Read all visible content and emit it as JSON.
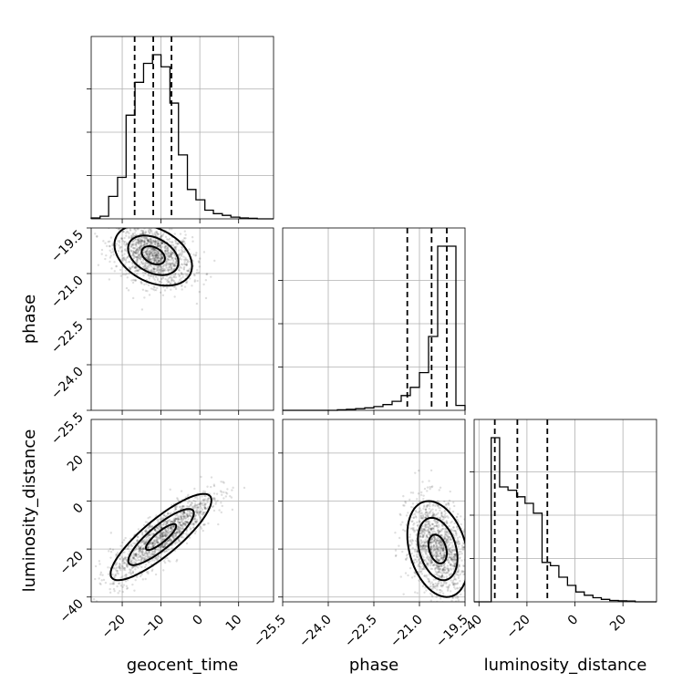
{
  "chart_data": {
    "type": "corner",
    "parameters": [
      "geocent_time",
      "phase",
      "luminosity_distance"
    ],
    "axis_labels": {
      "geocent_time": "geocent_time",
      "phase": "phase",
      "luminosity_distance": "luminosity_distance"
    },
    "ranges": {
      "geocent_time": [
        -28,
        19
      ],
      "phase": [
        -25.5,
        -19.5
      ],
      "luminosity_distance": [
        -42,
        34
      ]
    },
    "ticks": {
      "geocent_time": [
        -20,
        -10,
        0,
        10
      ],
      "phase": [
        -25.5,
        -24.0,
        -22.5,
        -21.0,
        -19.5
      ],
      "luminosity_distance": [
        -40,
        -20,
        0,
        20
      ]
    },
    "tick_labels": {
      "geocent_time": [
        "−20",
        "−10",
        "0",
        "10"
      ],
      "phase": [
        "−25.5",
        "−24.0",
        "−22.5",
        "−21.0",
        "−19.5"
      ],
      "luminosity_distance": [
        "−40",
        "−20",
        "0",
        "20"
      ]
    },
    "grid": true,
    "marginals": {
      "geocent_time": {
        "quantiles": [
          -16.8,
          -12.0,
          -7.3
        ],
        "bin_edges": [
          -28,
          -25.7,
          -23.5,
          -21.2,
          -19,
          -16.7,
          -14.5,
          -12.2,
          -10,
          -7.7,
          -5.5,
          -3.2,
          -1,
          1.3,
          3.5,
          5.8,
          8,
          10.3,
          12.5,
          14.8,
          17,
          19
        ],
        "counts": [
          0.5,
          1.5,
          13,
          24,
          60,
          79,
          90,
          95,
          88,
          67,
          37,
          17,
          11,
          5,
          3,
          2,
          1,
          0.5,
          0.3,
          0,
          0
        ]
      },
      "phase": {
        "quantiles": [
          -21.4,
          -20.6,
          -20.1
        ],
        "bin_edges": [
          -25.5,
          -25.2,
          -24.9,
          -24.6,
          -24.3,
          -24.0,
          -23.7,
          -23.4,
          -23.1,
          -22.8,
          -22.5,
          -22.2,
          -21.9,
          -21.6,
          -21.3,
          -21.0,
          -20.7,
          -20.4,
          -20.1,
          -19.8,
          -19.5
        ],
        "counts": [
          0,
          0,
          0,
          0,
          0,
          0,
          0.3,
          0.6,
          1,
          1.5,
          2.3,
          3.5,
          5.5,
          9,
          14,
          23,
          45,
          100,
          100,
          3
        ]
      },
      "luminosity_distance": {
        "quantiles": [
          -33.4,
          -24.0,
          -11.5
        ],
        "bin_edges": [
          -42,
          -38.5,
          -34.9,
          -31.4,
          -27.9,
          -24.3,
          -20.8,
          -17.3,
          -13.7,
          -10.2,
          -6.7,
          -3.1,
          0.4,
          3.9,
          7.5,
          11,
          14.5,
          18.1,
          21.6,
          25.1,
          28.7,
          34
        ],
        "counts": [
          0,
          0,
          100,
          70,
          68,
          64,
          60,
          54,
          24,
          22,
          15,
          10,
          6,
          4,
          2.5,
          1.5,
          0.8,
          0.6,
          0.5,
          0,
          0
        ]
      }
    },
    "joint": {
      "phase_vs_geocent_time": {
        "center": [
          -12,
          -20.4
        ],
        "spread": [
          5.0,
          0.5
        ],
        "correlation": -0.35
      },
      "luminosity_distance_vs_geocent_time": {
        "center": [
          -10,
          -15
        ],
        "spread": [
          6.5,
          9.0
        ],
        "correlation": 0.85
      },
      "luminosity_distance_vs_phase": {
        "center": [
          -20.4,
          -20
        ],
        "spread": [
          0.5,
          10
        ],
        "correlation": -0.3
      }
    }
  }
}
